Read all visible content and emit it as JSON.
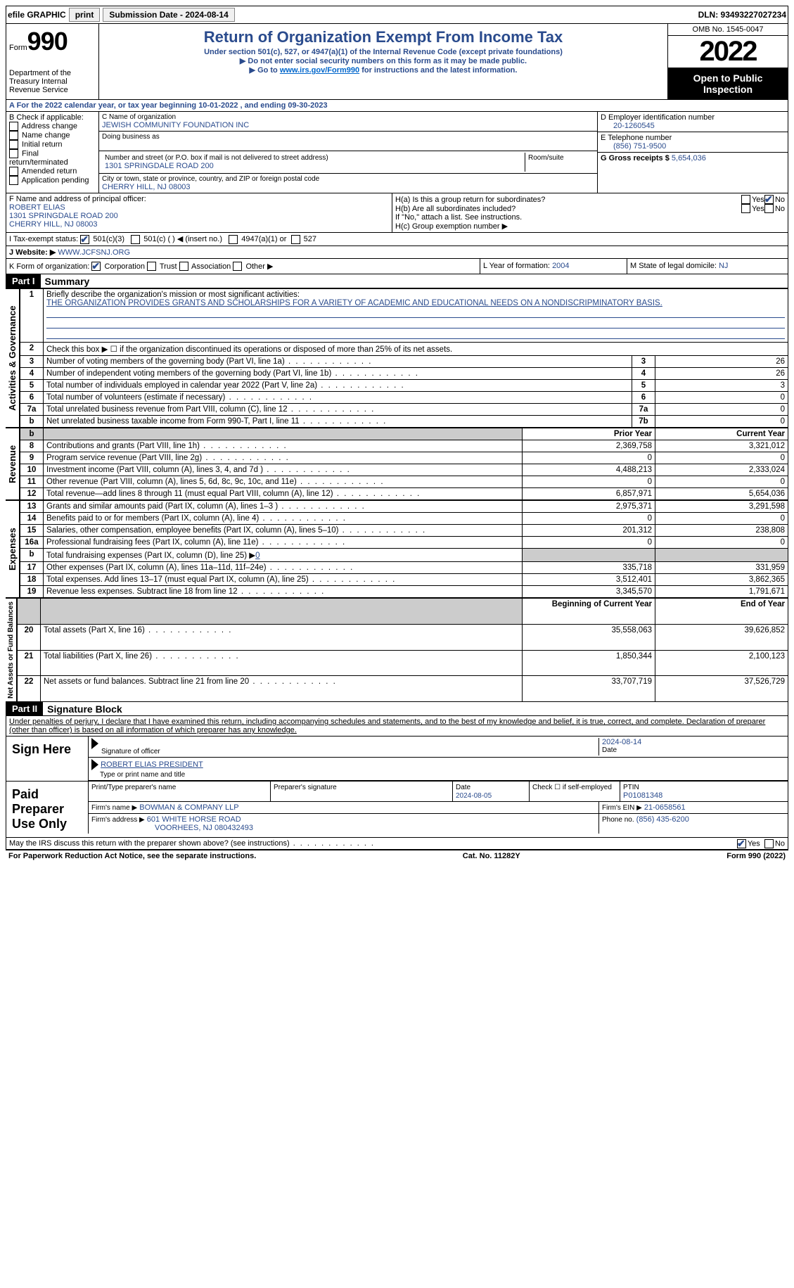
{
  "topbar": {
    "efile": "efile GRAPHIC",
    "print": "print",
    "sub_label": "Submission Date - 2024-08-14",
    "dln_label": "DLN: 93493227027234"
  },
  "header": {
    "form_prefix": "Form",
    "form_no": "990",
    "dept": "Department of the Treasury\nInternal Revenue Service",
    "title": "Return of Organization Exempt From Income Tax",
    "sub1": "Under section 501(c), 527, or 4947(a)(1) of the Internal Revenue Code (except private foundations)",
    "sub2": "▶ Do not enter social security numbers on this form as it may be made public.",
    "sub3_pre": "▶ Go to ",
    "sub3_link": "www.irs.gov/Form990",
    "sub3_post": " for instructions and the latest information.",
    "omb": "OMB No. 1545-0047",
    "year": "2022",
    "open": "Open to Public Inspection"
  },
  "row_a": "A For the 2022 calendar year, or tax year beginning 10-01-2022    , and ending 09-30-2023",
  "b": {
    "label": "B Check if applicable:",
    "items": [
      "Address change",
      "Name change",
      "Initial return",
      "Final return/terminated",
      "Amended return",
      "Application pending"
    ]
  },
  "c": {
    "name_label": "C Name of organization",
    "name": "JEWISH COMMUNITY FOUNDATION INC",
    "dba_label": "Doing business as",
    "street_label": "Number and street (or P.O. box if mail is not delivered to street address)",
    "room_label": "Room/suite",
    "street": "1301 SPRINGDALE ROAD 200",
    "city_label": "City or town, state or province, country, and ZIP or foreign postal code",
    "city": "CHERRY HILL, NJ  08003"
  },
  "d": {
    "label": "D Employer identification number",
    "value": "20-1260545"
  },
  "e": {
    "label": "E Telephone number",
    "value": "(856) 751-9500"
  },
  "g": {
    "label": "G Gross receipts $",
    "value": "5,654,036"
  },
  "f": {
    "label": "F  Name and address of principal officer:",
    "name": "ROBERT ELIAS",
    "addr1": "1301 SPRINGDALE ROAD 200",
    "addr2": "CHERRY HILL, NJ  08003"
  },
  "h": {
    "a": "H(a)  Is this a group return for subordinates?",
    "b": "H(b)  Are all subordinates included?",
    "b_note": "If \"No,\" attach a list. See instructions.",
    "c": "H(c)  Group exemption number ▶",
    "yes": "Yes",
    "no": "No"
  },
  "i": {
    "label": "I   Tax-exempt status:",
    "o1": "501(c)(3)",
    "o2": "501(c) (  ) ◀ (insert no.)",
    "o3": "4947(a)(1) or",
    "o4": "527"
  },
  "j": {
    "label": "J   Website: ▶",
    "value": "WWW.JCFSNJ.ORG"
  },
  "k": {
    "label": "K Form of organization:",
    "o1": "Corporation",
    "o2": "Trust",
    "o3": "Association",
    "o4": "Other ▶"
  },
  "l": {
    "label": "L Year of formation:",
    "value": "2004"
  },
  "m": {
    "label": "M State of legal domicile:",
    "value": "NJ"
  },
  "part1": {
    "header": "Part I",
    "title": "Summary"
  },
  "line1": {
    "label": "Briefly describe the organization's mission or most significant activities:",
    "text": "THE ORGANIZATION PROVIDES GRANTS AND SCHOLARSHIPS FOR A VARIETY OF ACADEMIC AND EDUCATIONAL NEEDS ON A NONDISCRIPMINATORY BASIS."
  },
  "line2": "Check this box ▶ ☐  if the organization discontinued its operations or disposed of more than 25% of its net assets.",
  "summary_rows": [
    {
      "n": "3",
      "t": "Number of voting members of the governing body (Part VI, line 1a)",
      "box": "3",
      "v": "26"
    },
    {
      "n": "4",
      "t": "Number of independent voting members of the governing body (Part VI, line 1b)",
      "box": "4",
      "v": "26"
    },
    {
      "n": "5",
      "t": "Total number of individuals employed in calendar year 2022 (Part V, line 2a)",
      "box": "5",
      "v": "3"
    },
    {
      "n": "6",
      "t": "Total number of volunteers (estimate if necessary)",
      "box": "6",
      "v": "0"
    },
    {
      "n": "7a",
      "t": "Total unrelated business revenue from Part VIII, column (C), line 12",
      "box": "7a",
      "v": "0"
    },
    {
      "n": "b",
      "t": "Net unrelated business taxable income from Form 990-T, Part I, line 11",
      "box": "7b",
      "v": "0"
    }
  ],
  "col_headers": {
    "prior": "Prior Year",
    "current": "Current Year",
    "boy": "Beginning of Current Year",
    "eoy": "End of Year"
  },
  "revenue_rows": [
    {
      "n": "8",
      "t": "Contributions and grants (Part VIII, line 1h)",
      "p": "2,369,758",
      "c": "3,321,012"
    },
    {
      "n": "9",
      "t": "Program service revenue (Part VIII, line 2g)",
      "p": "0",
      "c": "0"
    },
    {
      "n": "10",
      "t": "Investment income (Part VIII, column (A), lines 3, 4, and 7d )",
      "p": "4,488,213",
      "c": "2,333,024"
    },
    {
      "n": "11",
      "t": "Other revenue (Part VIII, column (A), lines 5, 6d, 8c, 9c, 10c, and 11e)",
      "p": "0",
      "c": "0"
    },
    {
      "n": "12",
      "t": "Total revenue—add lines 8 through 11 (must equal Part VIII, column (A), line 12)",
      "p": "6,857,971",
      "c": "5,654,036"
    }
  ],
  "expense_rows": [
    {
      "n": "13",
      "t": "Grants and similar amounts paid (Part IX, column (A), lines 1–3 )",
      "p": "2,975,371",
      "c": "3,291,598"
    },
    {
      "n": "14",
      "t": "Benefits paid to or for members (Part IX, column (A), line 4)",
      "p": "0",
      "c": "0"
    },
    {
      "n": "15",
      "t": "Salaries, other compensation, employee benefits (Part IX, column (A), lines 5–10)",
      "p": "201,312",
      "c": "238,808"
    },
    {
      "n": "16a",
      "t": "Professional fundraising fees (Part IX, column (A), line 11e)",
      "p": "0",
      "c": "0"
    },
    {
      "n": "b",
      "t": "Total fundraising expenses (Part IX, column (D), line 25) ▶",
      "inline": "0",
      "shade": true
    },
    {
      "n": "17",
      "t": "Other expenses (Part IX, column (A), lines 11a–11d, 11f–24e)",
      "p": "335,718",
      "c": "331,959"
    },
    {
      "n": "18",
      "t": "Total expenses. Add lines 13–17 (must equal Part IX, column (A), line 25)",
      "p": "3,512,401",
      "c": "3,862,365"
    },
    {
      "n": "19",
      "t": "Revenue less expenses. Subtract line 18 from line 12",
      "p": "3,345,570",
      "c": "1,791,671"
    }
  ],
  "net_rows": [
    {
      "n": "20",
      "t": "Total assets (Part X, line 16)",
      "p": "35,558,063",
      "c": "39,626,852"
    },
    {
      "n": "21",
      "t": "Total liabilities (Part X, line 26)",
      "p": "1,850,344",
      "c": "2,100,123"
    },
    {
      "n": "22",
      "t": "Net assets or fund balances. Subtract line 21 from line 20",
      "p": "33,707,719",
      "c": "37,526,729"
    }
  ],
  "vlabels": {
    "act": "Activities & Governance",
    "rev": "Revenue",
    "exp": "Expenses",
    "net": "Net Assets or Fund Balances"
  },
  "part2": {
    "header": "Part II",
    "title": "Signature Block",
    "declaration": "Under penalties of perjury, I declare that I have examined this return, including accompanying schedules and statements, and to the best of my knowledge and belief, it is true, correct, and complete. Declaration of preparer (other than officer) is based on all information of which preparer has any knowledge."
  },
  "sign": {
    "label": "Sign Here",
    "sig_label": "Signature of officer",
    "date": "2024-08-14",
    "date_label": "Date",
    "name": "ROBERT ELIAS  PRESIDENT",
    "name_label": "Type or print name and title"
  },
  "preparer": {
    "label": "Paid Preparer Use Only",
    "h1": "Print/Type preparer's name",
    "h2": "Preparer's signature",
    "h3": "Date",
    "date": "2024-08-05",
    "h4": "Check ☐ if self-employed",
    "h5": "PTIN",
    "ptin": "P01081348",
    "firm_label": "Firm's name    ▶",
    "firm": "BOWMAN & COMPANY LLP",
    "ein_label": "Firm's EIN ▶",
    "ein": "21-0658561",
    "addr_label": "Firm's address ▶",
    "addr1": "601 WHITE HORSE ROAD",
    "addr2": "VOORHEES, NJ  080432493",
    "phone_label": "Phone no.",
    "phone": "(856) 435-6200"
  },
  "discuss": {
    "q": "May the IRS discuss this return with the preparer shown above? (see instructions)",
    "yes": "Yes",
    "no": "No"
  },
  "footer": {
    "l": "For Paperwork Reduction Act Notice, see the separate instructions.",
    "c": "Cat. No. 11282Y",
    "r": "Form 990 (2022)"
  }
}
